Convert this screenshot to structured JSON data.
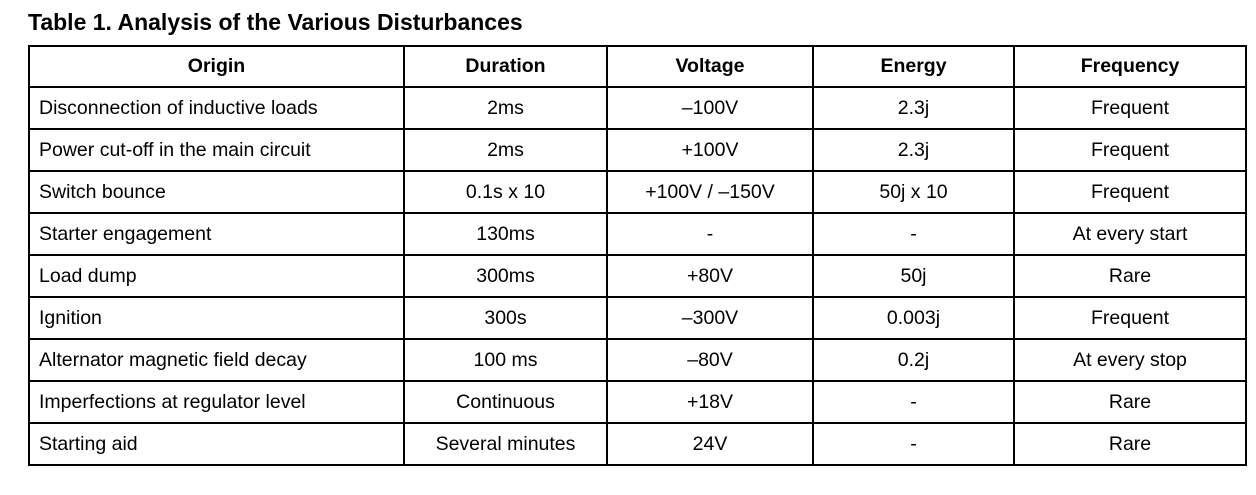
{
  "title": "Table 1. Analysis of the Various Disturbances",
  "table": {
    "headers": [
      "Origin",
      "Duration",
      "Voltage",
      "Energy",
      "Frequency"
    ],
    "rows": [
      [
        "Disconnection of inductive loads",
        "2ms",
        "–100V",
        "2.3j",
        "Frequent"
      ],
      [
        "Power cut-off in the main circuit",
        "2ms",
        "+100V",
        "2.3j",
        "Frequent"
      ],
      [
        "Switch bounce",
        "0.1s x 10",
        "+100V / –150V",
        "50j x 10",
        "Frequent"
      ],
      [
        "Starter engagement",
        "130ms",
        "-",
        "-",
        "At every start"
      ],
      [
        "Load dump",
        "300ms",
        "+80V",
        "50j",
        "Rare"
      ],
      [
        "Ignition",
        "300s",
        "–300V",
        "0.003j",
        "Frequent"
      ],
      [
        "Alternator magnetic field decay",
        "100 ms",
        "–80V",
        "0.2j",
        "At every stop"
      ],
      [
        "Imperfections at regulator level",
        "Continuous",
        "+18V",
        "-",
        "Rare"
      ],
      [
        "Starting aid",
        "Several minutes",
        "24V",
        "-",
        "Rare"
      ]
    ]
  }
}
